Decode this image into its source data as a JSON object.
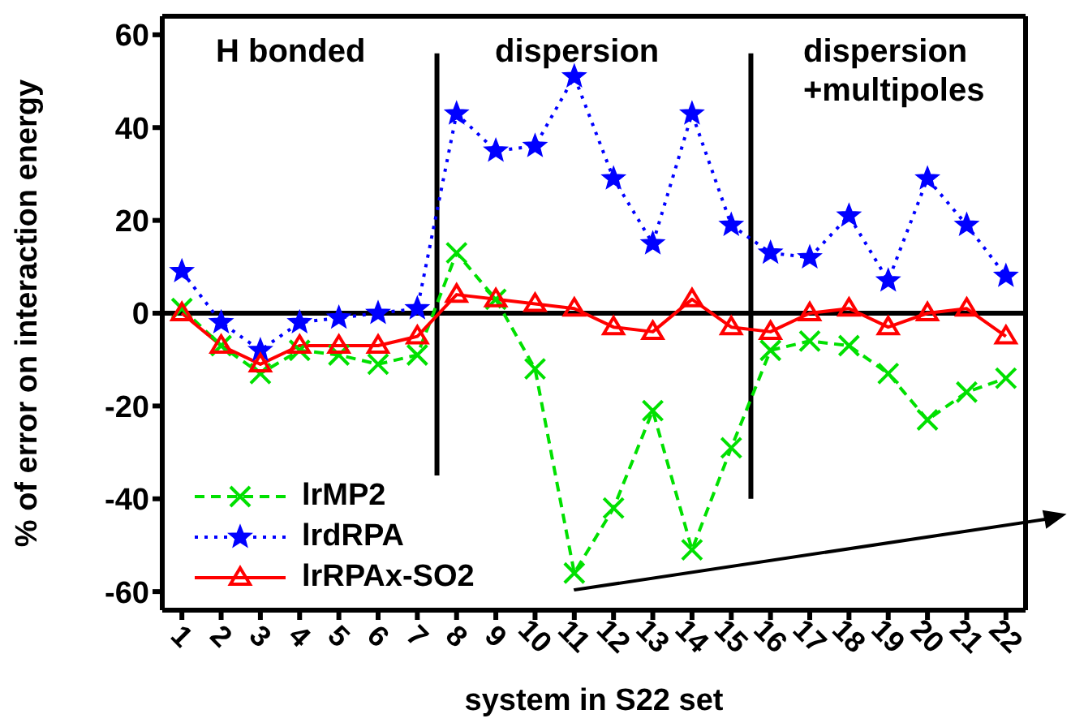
{
  "chart_data": {
    "type": "line",
    "xlabel": "system in S22 set",
    "ylabel": "% of error on interaction energy",
    "x": [
      1,
      2,
      3,
      4,
      5,
      6,
      7,
      8,
      9,
      10,
      11,
      12,
      13,
      14,
      15,
      16,
      17,
      18,
      19,
      20,
      21,
      22
    ],
    "xlim": [
      0.5,
      22.5
    ],
    "xticks": [
      1,
      2,
      3,
      4,
      5,
      6,
      7,
      8,
      9,
      10,
      11,
      12,
      13,
      14,
      15,
      16,
      17,
      18,
      19,
      20,
      21,
      22
    ],
    "ylim": [
      -64,
      64
    ],
    "yticks": [
      -60,
      -40,
      -20,
      0,
      20,
      40,
      60
    ],
    "series": [
      {
        "name": "lrMP2",
        "color": "#00e000",
        "marker": "cross",
        "line_style": "dashed",
        "values": [
          1,
          -7,
          -13,
          -8,
          -9,
          -11,
          -9,
          13,
          3,
          -12,
          -56,
          -42,
          -21,
          -51,
          -29,
          -8,
          -6,
          -7,
          -13,
          -23,
          -17,
          -14
        ]
      },
      {
        "name": "lrdRPA",
        "color": "#0000ff",
        "marker": "star",
        "line_style": "dotted",
        "values": [
          9,
          -2,
          -8,
          -2,
          -1,
          0,
          1,
          43,
          35,
          36,
          51,
          29,
          15,
          43,
          19,
          13,
          12,
          21,
          7,
          29,
          19,
          8
        ]
      },
      {
        "name": "lrRPAx-SO2",
        "color": "#ff0000",
        "marker": "triangle",
        "line_style": "solid",
        "values": [
          0,
          -7,
          -11,
          -7,
          -7,
          -7,
          -5,
          4,
          3,
          2,
          1,
          -3,
          -4,
          3,
          -3,
          -4,
          0,
          1,
          -3,
          0,
          1,
          -5
        ]
      }
    ],
    "ref_lines": [
      {
        "axis": "y",
        "value": 0,
        "color": "#000000"
      },
      {
        "axis": "x",
        "value": 7.5,
        "color": "#000000"
      },
      {
        "axis": "x",
        "value": 15.5,
        "color": "#000000"
      }
    ],
    "annotations": [
      "H bonded",
      "dispersion",
      "dispersion\n+multipoles"
    ],
    "legend": "bottom left",
    "grid": false
  }
}
